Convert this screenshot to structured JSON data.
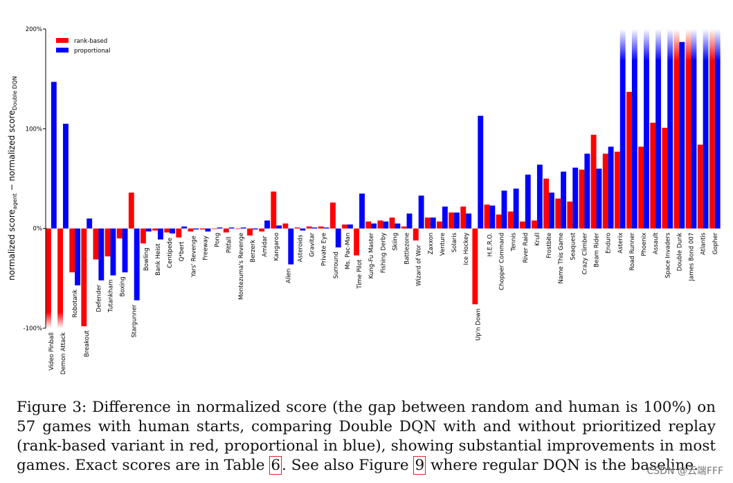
{
  "chart_data": {
    "type": "bar",
    "ylabel": "normalized score_agent − normalized score_Double DQN",
    "ylabel_main": "normalized score",
    "ylabel_sub_agent": "agent",
    "ylabel_mid": " − normalized score",
    "ylabel_sub_base": "Double DQN",
    "ylim": [
      -100,
      200
    ],
    "yticks": [
      "200%",
      "100%",
      "0%",
      "-100%"
    ],
    "ytick_values": [
      200,
      100,
      0,
      -100
    ],
    "legend": [
      {
        "name": "rank-based",
        "color": "#ff0000"
      },
      {
        "name": "proportional",
        "color": "#0000ff"
      }
    ],
    "categories": [
      "Video Pinball",
      "Demon Attack",
      "Robotank",
      "Breakout",
      "Defender",
      "Tutankham",
      "Boxing",
      "Stargunner",
      "Bowling",
      "Bank Heist",
      "Centipede",
      "Q*bert",
      "Yars' Revenge",
      "Freeway",
      "Pong",
      "Pitfall",
      "Montezuma's Revenge",
      "Berzerk",
      "Amidar",
      "Kangaroo",
      "Alien",
      "Asteroids",
      "Gravitar",
      "Private Eye",
      "Surround",
      "Ms. Pac-Man",
      "Time Pilot",
      "Kung-Fu Master",
      "Fishing Derby",
      "Skiing",
      "Battlezone",
      "Wizard of Wor",
      "Zaxxon",
      "Venture",
      "Solaris",
      "Ice Hockey",
      "Up'n Down",
      "H.E.R.O.",
      "Chopper Command",
      "Tennis",
      "River Raid",
      "Krull",
      "Frostbite",
      "Name This Game",
      "Seaquest",
      "Crazy Climber",
      "Beam Rider",
      "Enduro",
      "Asterix",
      "Road Runner",
      "Phoenix",
      "Assault",
      "Space Invaders",
      "Double Dunk",
      "James Bond 007",
      "Atlantis",
      "Gopher"
    ],
    "series": [
      {
        "name": "rank-based",
        "values": [
          -100,
          -100,
          -44,
          -98,
          -31,
          -28,
          -10,
          36,
          -15,
          -2,
          -4,
          -9,
          -3,
          -1,
          0,
          -4,
          0,
          -7,
          -3,
          37,
          5,
          1,
          2,
          2,
          26,
          4,
          -27,
          7,
          8,
          11,
          2,
          -12,
          11,
          7,
          16,
          22,
          -76,
          24,
          14,
          17,
          7,
          8,
          50,
          30,
          27,
          59,
          94,
          75,
          77,
          137,
          82,
          106,
          101,
          200,
          200,
          84,
          200
        ]
      },
      {
        "name": "proportional",
        "values": [
          147,
          105,
          -57,
          10,
          -52,
          -47,
          -44,
          -72,
          -3,
          -11,
          -5,
          2,
          -1,
          -3,
          1,
          1,
          1,
          -1,
          8,
          3,
          -36,
          -2,
          1,
          1,
          -19,
          4,
          35,
          5,
          7,
          5,
          15,
          33,
          11,
          22,
          16,
          15,
          113,
          23,
          38,
          40,
          54,
          64,
          36,
          57,
          61,
          75,
          60,
          82,
          200,
          200,
          200,
          200,
          200,
          187,
          200,
          200,
          200
        ]
      }
    ]
  },
  "caption": {
    "part1": "Figure 3:   Difference in normalized score (the gap between random and human is 100%) on 57 games with human starts, comparing Double DQN with and without prioritized replay (rank-based variant in red, proportional in blue), showing substantial improvements in most games. Exact scores are in Table ",
    "table_ref": "6",
    "part2": ". See also Figure ",
    "figure_ref": "9",
    "part3": " where regular DQN is the baseline."
  },
  "watermark": "CSDN @云端FFF"
}
